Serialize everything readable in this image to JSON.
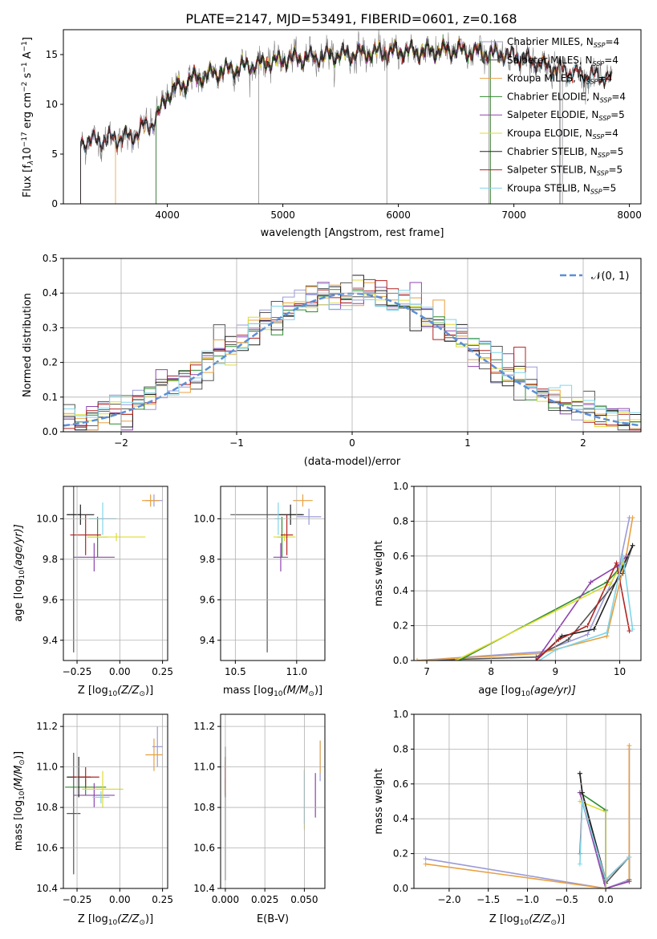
{
  "figure_title": "PLATE=2147, MJD=53491, FIBERID=0601, z=0.168",
  "legend_sub": "SSP",
  "colors": [
    "#9a9ad8",
    "#555555",
    "#e8a040",
    "#2e8b2e",
    "#8e44ad",
    "#dddd33",
    "#222222",
    "#b22222",
    "#7fd6e8"
  ],
  "chart_data": [
    {
      "type": "line",
      "name": "spectrum",
      "xlabel": "wavelength [Angstrom, rest frame]",
      "ylabel_main": "Flux [f",
      "ylabel_sub": "λ",
      "ylabel_rest": "10",
      "ylabel_exp": "−17",
      "ylabel_unit": " erg cm",
      "ylabel_exp2": "−2",
      "ylabel_unit2": " s",
      "ylabel_exp3": "−1",
      "ylabel_unit3": " A",
      "ylabel_exp4": "−1",
      "ylabel_close": "]",
      "xlim": [
        3100,
        8100
      ],
      "ylim": [
        0,
        17.5
      ],
      "xticks": [
        "4000",
        "5000",
        "6000",
        "7000",
        "8000"
      ],
      "yticks": [
        "0",
        "5",
        "10",
        "15"
      ],
      "legend": [
        {
          "name": "Chabrier MILES, N",
          "n": "=4"
        },
        {
          "name": "Salpeter MILES, N",
          "n": "=4"
        },
        {
          "name": "Kroupa MILES, N",
          "n": "=4"
        },
        {
          "name": "Chabrier ELODIE, N",
          "n": "=4"
        },
        {
          "name": "Salpeter ELODIE, N",
          "n": "=5"
        },
        {
          "name": "Kroupa ELODIE, N",
          "n": "=4"
        },
        {
          "name": "Chabrier STELIB, N",
          "n": "=5"
        },
        {
          "name": "Salpeter STELIB, N",
          "n": "=5"
        },
        {
          "name": "Kroupa STELIB, N",
          "n": "=5"
        }
      ],
      "continuum": {
        "x": [
          3250,
          3500,
          3700,
          3900,
          4000,
          4200,
          4500,
          5000,
          5500,
          6000,
          6500,
          7000,
          7300,
          7500,
          7850
        ],
        "y": [
          6.2,
          6.5,
          6.8,
          8.5,
          11.0,
          12.5,
          13.4,
          14.5,
          15.0,
          15.3,
          15.4,
          14.9,
          13.8,
          13.2,
          12.6
        ]
      },
      "data_range": [
        3250,
        7850
      ],
      "model_ranges": [
        [
          3250,
          7400
        ],
        [
          3250,
          7400
        ],
        [
          3550,
          7400
        ],
        [
          3900,
          6800
        ],
        [
          3900,
          6800
        ],
        [
          3900,
          6800
        ],
        [
          3250,
          7850
        ],
        [
          3250,
          7850
        ],
        [
          3250,
          7850
        ]
      ],
      "dips": [
        {
          "x": 4790,
          "y": 0
        },
        {
          "x": 5900,
          "y": 0
        },
        {
          "x": 6785,
          "y": 0
        },
        {
          "x": 7420,
          "y": 0
        }
      ]
    },
    {
      "type": "bar",
      "name": "residual-histogram",
      "xlabel": "(data-model)/error",
      "ylabel": "Normed distribution",
      "xlim": [
        -2.5,
        2.5
      ],
      "ylim": [
        0,
        0.5
      ],
      "xticks": [
        "−2",
        "−1",
        "0",
        "1",
        "2"
      ],
      "yticks": [
        "0.0",
        "0.1",
        "0.2",
        "0.3",
        "0.4",
        "0.5"
      ],
      "reference_label": "𝒩(0, 1)",
      "bin_width": 0.1
    },
    {
      "type": "scatter",
      "name": "age-vs-metallicity",
      "xlabel": "Z [log",
      "xlabel_sub": "10",
      "xlabel_rest": "(Z/Z",
      "xlabel_sun": "⊙",
      "xlabel_close": ")]",
      "ylabel": "age  [log",
      "ylabel_sub": "10",
      "ylabel_rest": "(age/yr)]",
      "xlim": [
        -0.33,
        0.28
      ],
      "ylim": [
        9.3,
        10.16
      ],
      "xticks": [
        "−0.25",
        "0.00",
        "0.25"
      ],
      "yticks": [
        "9.4",
        "9.6",
        "9.8",
        "10.0"
      ],
      "points": [
        {
          "x": 0.2,
          "xerr": 0.05,
          "y": 10.09,
          "yerr": 0.03
        },
        {
          "x": -0.27,
          "xerr": 0.04,
          "y": 10.02,
          "yerr": 0.68
        },
        {
          "x": 0.18,
          "xerr": 0.05,
          "y": 10.09,
          "yerr": 0.03
        },
        {
          "x": -0.13,
          "xerr": 0.06,
          "y": 9.91,
          "yerr": 0.1
        },
        {
          "x": -0.15,
          "xerr": 0.12,
          "y": 9.81,
          "yerr": 0.07
        },
        {
          "x": -0.02,
          "xerr": 0.17,
          "y": 9.91,
          "yerr": 0.02
        },
        {
          "x": -0.23,
          "xerr": 0.08,
          "y": 10.02,
          "yerr": 0.05
        },
        {
          "x": -0.2,
          "xerr": 0.09,
          "y": 9.92,
          "yerr": 0.1
        },
        {
          "x": -0.1,
          "xerr": 0.08,
          "y": 10.0,
          "yerr": 0.08
        }
      ]
    },
    {
      "type": "scatter",
      "name": "age-vs-mass",
      "xlabel": "mass [log",
      "xlabel_sub": "10",
      "xlabel_rest": "(M/M",
      "xlabel_sun": "⊙",
      "xlabel_close": ")]",
      "xlim": [
        10.38,
        11.23
      ],
      "ylim": [
        9.3,
        10.16
      ],
      "xticks": [
        "10.5",
        "11.0"
      ],
      "yticks": [
        "9.4",
        "9.6",
        "9.8",
        "10.0"
      ],
      "points": [
        {
          "x": 11.1,
          "xerr": 0.1,
          "y": 10.01,
          "yerr": 0.04
        },
        {
          "x": 10.76,
          "xerr": 0.3,
          "y": 10.02,
          "yerr": 0.68
        },
        {
          "x": 11.05,
          "xerr": 0.08,
          "y": 10.09,
          "yerr": 0.03
        },
        {
          "x": 10.88,
          "xerr": 0.04,
          "y": 9.91,
          "yerr": 0.1
        },
        {
          "x": 10.87,
          "xerr": 0.06,
          "y": 9.81,
          "yerr": 0.07
        },
        {
          "x": 10.9,
          "xerr": 0.09,
          "y": 9.91,
          "yerr": 0.02
        },
        {
          "x": 10.95,
          "xerr": 0.1,
          "y": 10.02,
          "yerr": 0.05
        },
        {
          "x": 10.92,
          "xerr": 0.05,
          "y": 9.92,
          "yerr": 0.1
        },
        {
          "x": 10.85,
          "xerr": 0.03,
          "y": 10.0,
          "yerr": 0.08
        }
      ]
    },
    {
      "type": "line",
      "name": "mass-weight-vs-age",
      "xlabel": "age  [log",
      "xlabel_sub": "10",
      "xlabel_rest": "(age/yr)]",
      "ylabel": "mass weight",
      "xlim": [
        6.8,
        10.33
      ],
      "ylim": [
        0,
        1
      ],
      "xticks": [
        "7",
        "8",
        "9",
        "10"
      ],
      "yticks": [
        "0.0",
        "0.2",
        "0.4",
        "0.6",
        "0.8",
        "1.0"
      ],
      "series": [
        {
          "x": [
            6.85,
            8.8,
            9.5,
            10.0,
            10.15
          ],
          "y": [
            0.0,
            0.05,
            0.15,
            0.55,
            0.82
          ]
        },
        {
          "x": [
            6.85,
            8.7,
            9.2,
            10.05,
            10.2
          ],
          "y": [
            0.0,
            0.02,
            0.12,
            0.5,
            0.66
          ]
        },
        {
          "x": [
            6.85,
            8.75,
            9.8,
            10.1,
            10.2
          ],
          "y": [
            0.0,
            0.04,
            0.14,
            0.6,
            0.82
          ]
        },
        {
          "x": [
            7.5,
            9.8,
            10.05
          ],
          "y": [
            0.0,
            0.45,
            0.55
          ]
        },
        {
          "x": [
            8.7,
            9.55,
            10.0,
            10.1
          ],
          "y": [
            0.0,
            0.45,
            0.55,
            0.6
          ]
        },
        {
          "x": [
            7.45,
            9.85,
            10.05
          ],
          "y": [
            0.0,
            0.44,
            0.56
          ]
        },
        {
          "x": [
            8.7,
            9.1,
            9.6,
            10.0,
            10.2
          ],
          "y": [
            0.0,
            0.14,
            0.18,
            0.5,
            0.66
          ]
        },
        {
          "x": [
            8.7,
            9.05,
            9.5,
            9.95,
            10.15
          ],
          "y": [
            0.0,
            0.12,
            0.2,
            0.56,
            0.17
          ]
        },
        {
          "x": [
            8.75,
            9.0,
            9.8,
            10.05,
            10.2
          ],
          "y": [
            0.0,
            0.06,
            0.16,
            0.6,
            0.18
          ]
        }
      ]
    },
    {
      "type": "scatter",
      "name": "mass-vs-metallicity",
      "xlabel": "Z [log",
      "xlabel_sub": "10",
      "xlabel_rest": "(Z/Z",
      "xlabel_sun": "⊙",
      "xlabel_close": ")]",
      "ylabel": "mass [log",
      "ylabel_sub": "10",
      "ylabel_rest": "(M/M",
      "ylabel_sun": "⊙",
      "ylabel_close": ")]",
      "xlim": [
        -0.33,
        0.28
      ],
      "ylim": [
        10.4,
        11.26
      ],
      "xticks": [
        "−0.25",
        "0.00",
        "0.25"
      ],
      "yticks": [
        "10.4",
        "10.6",
        "10.8",
        "11.0",
        "11.2"
      ],
      "points": [
        {
          "x": 0.22,
          "xerr": 0.03,
          "y": 11.1,
          "yerr": 0.1
        },
        {
          "x": -0.27,
          "xerr": 0.04,
          "y": 10.77,
          "yerr": 0.3
        },
        {
          "x": 0.2,
          "xerr": 0.05,
          "y": 11.06,
          "yerr": 0.08
        },
        {
          "x": -0.2,
          "xerr": 0.12,
          "y": 10.9,
          "yerr": 0.04
        },
        {
          "x": -0.15,
          "xerr": 0.12,
          "y": 10.86,
          "yerr": 0.06
        },
        {
          "x": -0.1,
          "xerr": 0.12,
          "y": 10.89,
          "yerr": 0.09
        },
        {
          "x": -0.24,
          "xerr": 0.07,
          "y": 10.95,
          "yerr": 0.1
        },
        {
          "x": -0.2,
          "xerr": 0.08,
          "y": 10.95,
          "yerr": 0.05
        },
        {
          "x": -0.11,
          "xerr": 0.05,
          "y": 10.85,
          "yerr": 0.03
        }
      ]
    },
    {
      "type": "scatter",
      "name": "mass-vs-extinction",
      "xlabel": "E(B-V)",
      "xlim": [
        -0.003,
        0.063
      ],
      "ylim": [
        10.4,
        11.26
      ],
      "xticks": [
        "0.000",
        "0.025",
        "0.050"
      ],
      "yticks": [
        "10.4",
        "10.6",
        "10.8",
        "11.0",
        "11.2"
      ],
      "points": [
        {
          "x": 0.06,
          "y": 11.03,
          "yerr": 0.1
        },
        {
          "x": 0.0,
          "y": 10.77,
          "yerr": 0.33
        },
        {
          "x": 0.06,
          "y": 11.05,
          "yerr": 0.08
        },
        {
          "x": 0.0,
          "y": 10.9,
          "yerr": 0.04
        },
        {
          "x": 0.057,
          "y": 10.86,
          "yerr": 0.11
        },
        {
          "x": 0.05,
          "y": 10.84,
          "yerr": 0.15
        },
        {
          "x": 0.0,
          "y": 10.95,
          "yerr": 0.1
        },
        {
          "x": 0.0,
          "y": 10.95,
          "yerr": 0.08
        },
        {
          "x": 0.05,
          "y": 10.85,
          "yerr": 0.13
        }
      ]
    },
    {
      "type": "line",
      "name": "mass-weight-vs-metallicity",
      "xlabel": "Z [log",
      "xlabel_sub": "10",
      "xlabel_rest": "(Z/Z",
      "xlabel_sun": "⊙",
      "xlabel_close": ")]",
      "ylabel": "mass weight",
      "xlim": [
        -2.45,
        0.45
      ],
      "ylim": [
        0,
        1
      ],
      "xticks": [
        "−2.0",
        "−1.5",
        "−1.0",
        "−0.5",
        "0.0"
      ],
      "yticks": [
        "0.0",
        "0.2",
        "0.4",
        "0.6",
        "0.8",
        "1.0"
      ],
      "series": [
        {
          "x": [
            -2.3,
            0.0,
            0.3,
            0.3
          ],
          "y": [
            0.17,
            0.0,
            0.05,
            0.8
          ]
        },
        {
          "x": [
            -0.33,
            -0.3,
            0.0,
            0.3,
            0.3
          ],
          "y": [
            0.66,
            0.55,
            0.03,
            0.18,
            0.05
          ]
        },
        {
          "x": [
            -2.3,
            0.0,
            0.3,
            0.3
          ],
          "y": [
            0.14,
            0.0,
            0.04,
            0.82
          ]
        },
        {
          "x": [
            -0.33,
            0.0,
            0.0
          ],
          "y": [
            0.55,
            0.45,
            0.0
          ]
        },
        {
          "x": [
            -0.33,
            0.0,
            0.3
          ],
          "y": [
            0.55,
            0.0,
            0.04
          ]
        },
        {
          "x": [
            -0.33,
            0.0,
            0.0
          ],
          "y": [
            0.5,
            0.44,
            0.0
          ]
        },
        {
          "x": [
            -0.33,
            -0.3,
            0.0,
            0.3
          ],
          "y": [
            0.66,
            0.55,
            0.05,
            0.18
          ]
        },
        {
          "x": [
            -0.33,
            -0.3,
            0.0,
            0.3
          ],
          "y": [
            0.2,
            0.5,
            0.05,
            0.18
          ]
        },
        {
          "x": [
            -0.33,
            -0.3,
            0.0,
            0.3
          ],
          "y": [
            0.14,
            0.5,
            0.05,
            0.18
          ]
        }
      ]
    }
  ]
}
